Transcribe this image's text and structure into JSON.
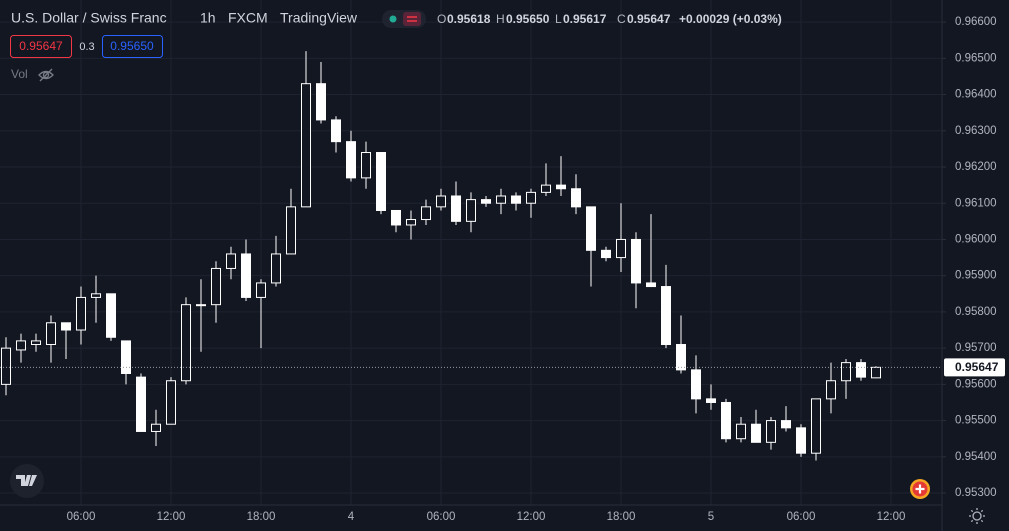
{
  "header": {
    "symbol": "U.S. Dollar / Swiss Franc",
    "interval": "1h",
    "exchange": "FXCM",
    "source": "TradingView",
    "ohlc": [
      {
        "label": "O",
        "value": "0.95618"
      },
      {
        "label": "H",
        "value": "0.95650"
      },
      {
        "label": "L",
        "value": "0.95617"
      },
      {
        "label": "C",
        "value": "0.95647"
      }
    ],
    "change": "+0.00029 (+0.03%)",
    "bid": "0.95647",
    "spread": "0.3",
    "ask": "0.95650",
    "volume_label": "Vol"
  },
  "chart_data": {
    "type": "candlestick",
    "x": [
      0,
      1,
      2,
      3,
      4,
      5,
      6,
      7,
      8,
      9,
      10,
      11,
      12,
      13,
      14,
      15,
      16,
      17,
      18,
      19,
      20,
      21,
      22,
      23,
      24,
      25,
      26,
      27,
      28,
      29,
      30,
      31,
      32,
      33,
      34,
      35,
      36,
      37,
      38,
      39,
      40,
      41,
      42,
      43,
      44,
      45,
      46,
      47,
      48,
      49,
      50,
      51,
      52,
      53,
      54,
      55,
      56,
      57,
      58
    ],
    "open": [
      0.956,
      0.95695,
      0.9571,
      0.9571,
      0.9577,
      0.9575,
      0.9584,
      0.9585,
      0.9572,
      0.9562,
      0.9547,
      0.9549,
      0.9561,
      0.9582,
      0.9582,
      0.9592,
      0.9596,
      0.9584,
      0.9588,
      0.9596,
      0.9609,
      0.9643,
      0.9633,
      0.9627,
      0.9617,
      0.9624,
      0.9608,
      0.9604,
      0.96055,
      0.9609,
      0.9612,
      0.9605,
      0.9611,
      0.961,
      0.9612,
      0.961,
      0.9613,
      0.9615,
      0.9614,
      0.9609,
      0.9597,
      0.9595,
      0.96,
      0.9588,
      0.9587,
      0.9571,
      0.9564,
      0.9556,
      0.9555,
      0.9545,
      0.9549,
      0.9544,
      0.955,
      0.9548,
      0.9541,
      0.9556,
      0.9561,
      0.9566,
      0.95618
    ],
    "high": [
      0.9573,
      0.9574,
      0.9574,
      0.9579,
      0.9577,
      0.9587,
      0.959,
      0.9585,
      0.9572,
      0.9563,
      0.9553,
      0.9562,
      0.9584,
      0.9589,
      0.9594,
      0.9598,
      0.96,
      0.9589,
      0.9601,
      0.9614,
      0.9652,
      0.9649,
      0.9634,
      0.963,
      0.9627,
      0.9624,
      0.9608,
      0.9608,
      0.9611,
      0.9614,
      0.9616,
      0.9613,
      0.9612,
      0.9614,
      0.9613,
      0.9614,
      0.9621,
      0.9623,
      0.9618,
      0.9609,
      0.9598,
      0.961,
      0.9602,
      0.9607,
      0.9593,
      0.9579,
      0.9568,
      0.956,
      0.9556,
      0.9551,
      0.9553,
      0.9551,
      0.9554,
      0.9549,
      0.9556,
      0.9566,
      0.9567,
      0.9567,
      0.9565
    ],
    "low": [
      0.9557,
      0.9566,
      0.9569,
      0.9566,
      0.9567,
      0.9571,
      0.9577,
      0.9572,
      0.956,
      0.9547,
      0.9543,
      0.9549,
      0.956,
      0.9569,
      0.9577,
      0.9589,
      0.9583,
      0.957,
      0.9587,
      0.9596,
      0.9609,
      0.9632,
      0.9624,
      0.9616,
      0.9614,
      0.9607,
      0.9602,
      0.96,
      0.9604,
      0.9608,
      0.9604,
      0.9602,
      0.9609,
      0.9607,
      0.9608,
      0.9606,
      0.9612,
      0.9612,
      0.9607,
      0.9587,
      0.9594,
      0.9591,
      0.9581,
      0.9587,
      0.957,
      0.9563,
      0.9552,
      0.9553,
      0.9544,
      0.9544,
      0.9544,
      0.9542,
      0.9547,
      0.954,
      0.9539,
      0.9552,
      0.9556,
      0.9561,
      0.95617
    ],
    "close": [
      0.957,
      0.9572,
      0.9572,
      0.9577,
      0.9575,
      0.9584,
      0.9585,
      0.9573,
      0.9563,
      0.9547,
      0.9549,
      0.9561,
      0.9582,
      0.9582,
      0.9592,
      0.9596,
      0.9584,
      0.9588,
      0.9596,
      0.9609,
      0.9643,
      0.9633,
      0.9627,
      0.9617,
      0.9624,
      0.9608,
      0.9604,
      0.96055,
      0.9609,
      0.9612,
      0.9605,
      0.9611,
      0.961,
      0.9612,
      0.961,
      0.9613,
      0.9615,
      0.9614,
      0.9609,
      0.9597,
      0.9595,
      0.96,
      0.9588,
      0.9587,
      0.9571,
      0.9564,
      0.9556,
      0.9555,
      0.9545,
      0.9549,
      0.9544,
      0.955,
      0.9548,
      0.9541,
      0.9556,
      0.9561,
      0.9566,
      0.9562,
      0.95647
    ],
    "xlim": [
      -0.4,
      62.4
    ],
    "ylim": [
      0.95267,
      0.96661
    ],
    "xticks": [
      {
        "value": 5,
        "label": "06:00"
      },
      {
        "value": 11,
        "label": "12:00"
      },
      {
        "value": 17,
        "label": "18:00"
      },
      {
        "value": 23,
        "label": "4"
      },
      {
        "value": 29,
        "label": "06:00"
      },
      {
        "value": 35,
        "label": "12:00"
      },
      {
        "value": 41,
        "label": "18:00"
      },
      {
        "value": 47,
        "label": "5"
      },
      {
        "value": 53,
        "label": "06:00"
      },
      {
        "value": 59,
        "label": "12:00"
      }
    ],
    "yticks": [
      {
        "value": 0.966,
        "label": "0.96600"
      },
      {
        "value": 0.965,
        "label": "0.96500"
      },
      {
        "value": 0.964,
        "label": "0.96400"
      },
      {
        "value": 0.963,
        "label": "0.96300"
      },
      {
        "value": 0.962,
        "label": "0.96200"
      },
      {
        "value": 0.961,
        "label": "0.96100"
      },
      {
        "value": 0.96,
        "label": "0.96000"
      },
      {
        "value": 0.959,
        "label": "0.95900"
      },
      {
        "value": 0.958,
        "label": "0.95800"
      },
      {
        "value": 0.957,
        "label": "0.95700"
      },
      {
        "value": 0.956,
        "label": "0.95600"
      },
      {
        "value": 0.955,
        "label": "0.95500"
      },
      {
        "value": 0.954,
        "label": "0.95400"
      },
      {
        "value": 0.953,
        "label": "0.95300"
      }
    ],
    "last_price": 0.95647,
    "grid": true,
    "colors": {
      "up_fill": "#131722",
      "down_fill": "#ffffff",
      "border": "#ffffff",
      "wick": "#ffffff"
    }
  }
}
